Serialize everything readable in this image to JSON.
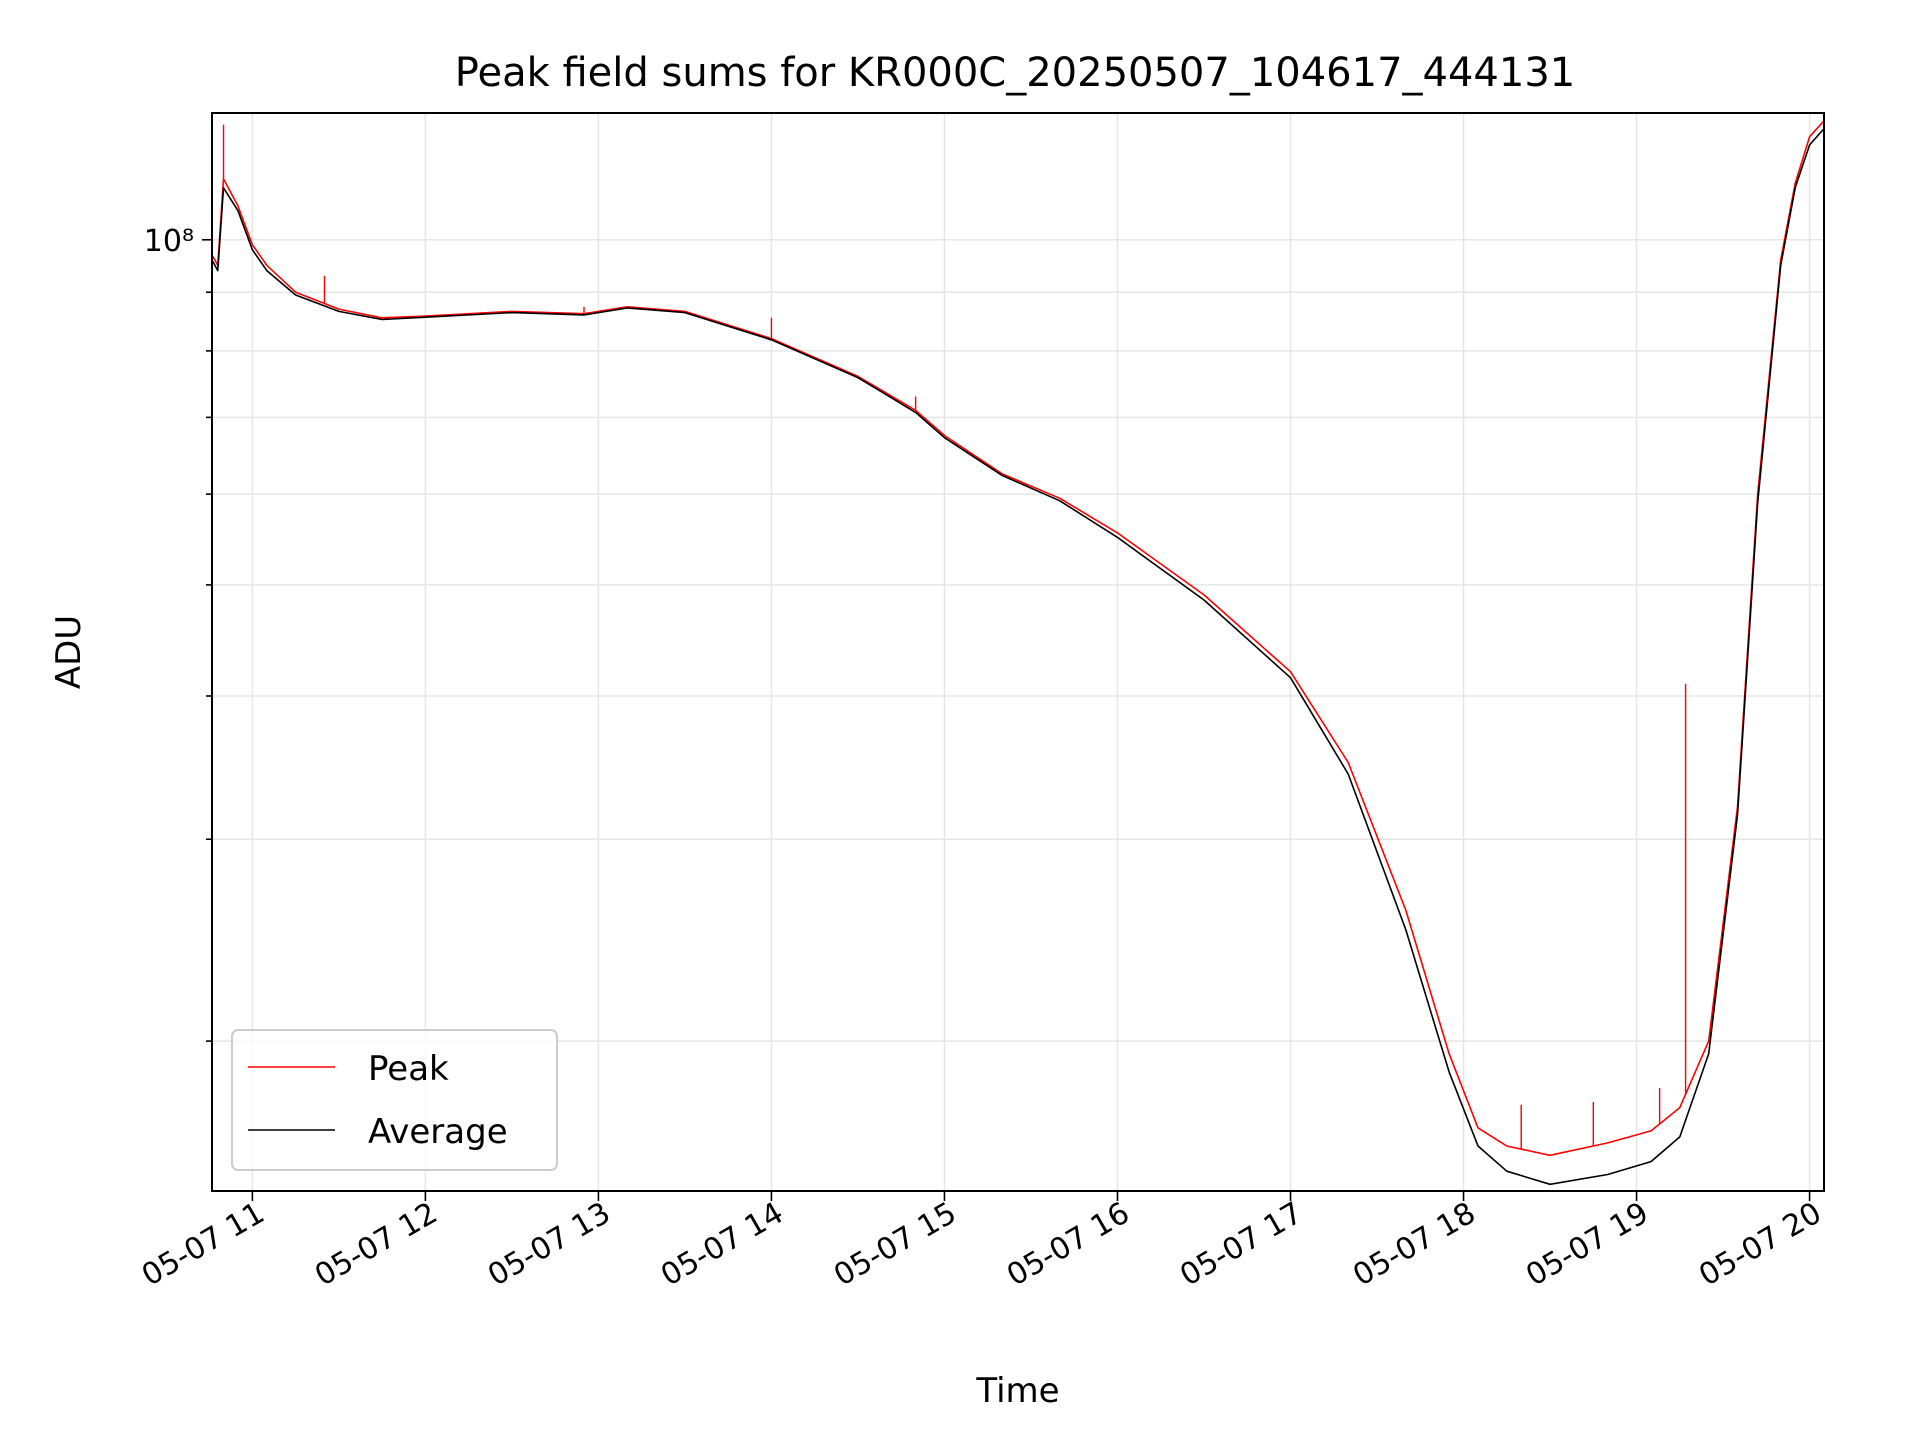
{
  "chart_data": {
    "type": "line",
    "title": "Peak field sums for KR000C_20250507_104617_444131",
    "xlabel": "Time",
    "ylabel": "ADU",
    "x_scale": "time",
    "y_scale": "log",
    "xlim": [
      "05-07 10:46",
      "05-07 20:05"
    ],
    "ylim": [
      14800000,
      129000000
    ],
    "x_ticks": [
      "05-07 11",
      "05-07 12",
      "05-07 13",
      "05-07 14",
      "05-07 15",
      "05-07 16",
      "05-07 17",
      "05-07 18",
      "05-07 19",
      "05-07 20"
    ],
    "y_ticks_labeled": [
      {
        "value": 100000000,
        "label": "10⁸"
      }
    ],
    "y_ticks_minor": [
      20000000,
      30000000,
      40000000,
      50000000,
      60000000,
      70000000,
      80000000,
      90000000
    ],
    "grid": true,
    "legend_position": "lower-left",
    "series": [
      {
        "name": "Peak",
        "color": "#ff0000",
        "points": [
          [
            "05-07 10:46",
            97000000
          ],
          [
            "05-07 10:48",
            95000000
          ],
          [
            "05-07 10:50",
            113000000
          ],
          [
            "05-07 10:55",
            107000000
          ],
          [
            "05-07 11:00",
            99000000
          ],
          [
            "05-07 11:05",
            95000000
          ],
          [
            "05-07 11:15",
            90000000
          ],
          [
            "05-07 11:30",
            87000000
          ],
          [
            "05-07 11:45",
            85500000
          ],
          [
            "05-07 12:00",
            85800000
          ],
          [
            "05-07 12:30",
            86600000
          ],
          [
            "05-07 12:55",
            86200000
          ],
          [
            "05-07 13:10",
            87400000
          ],
          [
            "05-07 13:30",
            86600000
          ],
          [
            "05-07 14:00",
            82000000
          ],
          [
            "05-07 14:30",
            76000000
          ],
          [
            "05-07 14:50",
            71000000
          ],
          [
            "05-07 15:00",
            67500000
          ],
          [
            "05-07 15:20",
            62500000
          ],
          [
            "05-07 15:40",
            59500000
          ],
          [
            "05-07 16:00",
            55500000
          ],
          [
            "05-07 16:30",
            49000000
          ],
          [
            "05-07 17:00",
            42000000
          ],
          [
            "05-07 17:20",
            35000000
          ],
          [
            "05-07 17:40",
            26000000
          ],
          [
            "05-07 17:55",
            19500000
          ],
          [
            "05-07 18:05",
            16800000
          ],
          [
            "05-07 18:15",
            16200000
          ],
          [
            "05-07 18:30",
            15900000
          ],
          [
            "05-07 18:50",
            16300000
          ],
          [
            "05-07 19:05",
            16700000
          ],
          [
            "05-07 19:15",
            17500000
          ],
          [
            "05-07 19:25",
            20000000
          ],
          [
            "05-07 19:35",
            32000000
          ],
          [
            "05-07 19:42",
            60000000
          ],
          [
            "05-07 19:50",
            96000000
          ],
          [
            "05-07 19:55",
            112000000
          ],
          [
            "05-07 20:00",
            123000000
          ],
          [
            "05-07 20:05",
            127000000
          ]
        ],
        "spikes": [
          [
            "05-07 10:50",
            126000000
          ],
          [
            "05-07 11:25",
            93000000
          ],
          [
            "05-07 12:55",
            87400000
          ],
          [
            "05-07 14:00",
            85500000
          ],
          [
            "05-07 14:50",
            73000000
          ],
          [
            "05-07 18:20",
            17600000
          ],
          [
            "05-07 18:45",
            17700000
          ],
          [
            "05-07 19:08",
            18200000
          ],
          [
            "05-07 19:17",
            41000000
          ]
        ]
      },
      {
        "name": "Average",
        "color": "#000000",
        "points": [
          [
            "05-07 10:46",
            96000000
          ],
          [
            "05-07 10:48",
            94000000
          ],
          [
            "05-07 10:50",
            111000000
          ],
          [
            "05-07 10:55",
            106000000
          ],
          [
            "05-07 11:00",
            98000000
          ],
          [
            "05-07 11:05",
            94000000
          ],
          [
            "05-07 11:15",
            89500000
          ],
          [
            "05-07 11:30",
            86600000
          ],
          [
            "05-07 11:45",
            85200000
          ],
          [
            "05-07 12:00",
            85600000
          ],
          [
            "05-07 12:30",
            86400000
          ],
          [
            "05-07 12:55",
            86000000
          ],
          [
            "05-07 13:10",
            87200000
          ],
          [
            "05-07 13:30",
            86400000
          ],
          [
            "05-07 14:00",
            81800000
          ],
          [
            "05-07 14:30",
            75800000
          ],
          [
            "05-07 14:50",
            70700000
          ],
          [
            "05-07 15:00",
            67200000
          ],
          [
            "05-07 15:20",
            62300000
          ],
          [
            "05-07 15:40",
            59200000
          ],
          [
            "05-07 16:00",
            55000000
          ],
          [
            "05-07 16:30",
            48500000
          ],
          [
            "05-07 17:00",
            41500000
          ],
          [
            "05-07 17:20",
            34200000
          ],
          [
            "05-07 17:40",
            25000000
          ],
          [
            "05-07 17:55",
            18800000
          ],
          [
            "05-07 18:05",
            16200000
          ],
          [
            "05-07 18:15",
            15400000
          ],
          [
            "05-07 18:30",
            15000000
          ],
          [
            "05-07 18:50",
            15300000
          ],
          [
            "05-07 19:05",
            15700000
          ],
          [
            "05-07 19:15",
            16500000
          ],
          [
            "05-07 19:25",
            19500000
          ],
          [
            "05-07 19:35",
            31500000
          ],
          [
            "05-07 19:42",
            59000000
          ],
          [
            "05-07 19:50",
            95000000
          ],
          [
            "05-07 19:55",
            111000000
          ],
          [
            "05-07 20:00",
            121000000
          ],
          [
            "05-07 20:05",
            125000000
          ]
        ]
      }
    ]
  }
}
